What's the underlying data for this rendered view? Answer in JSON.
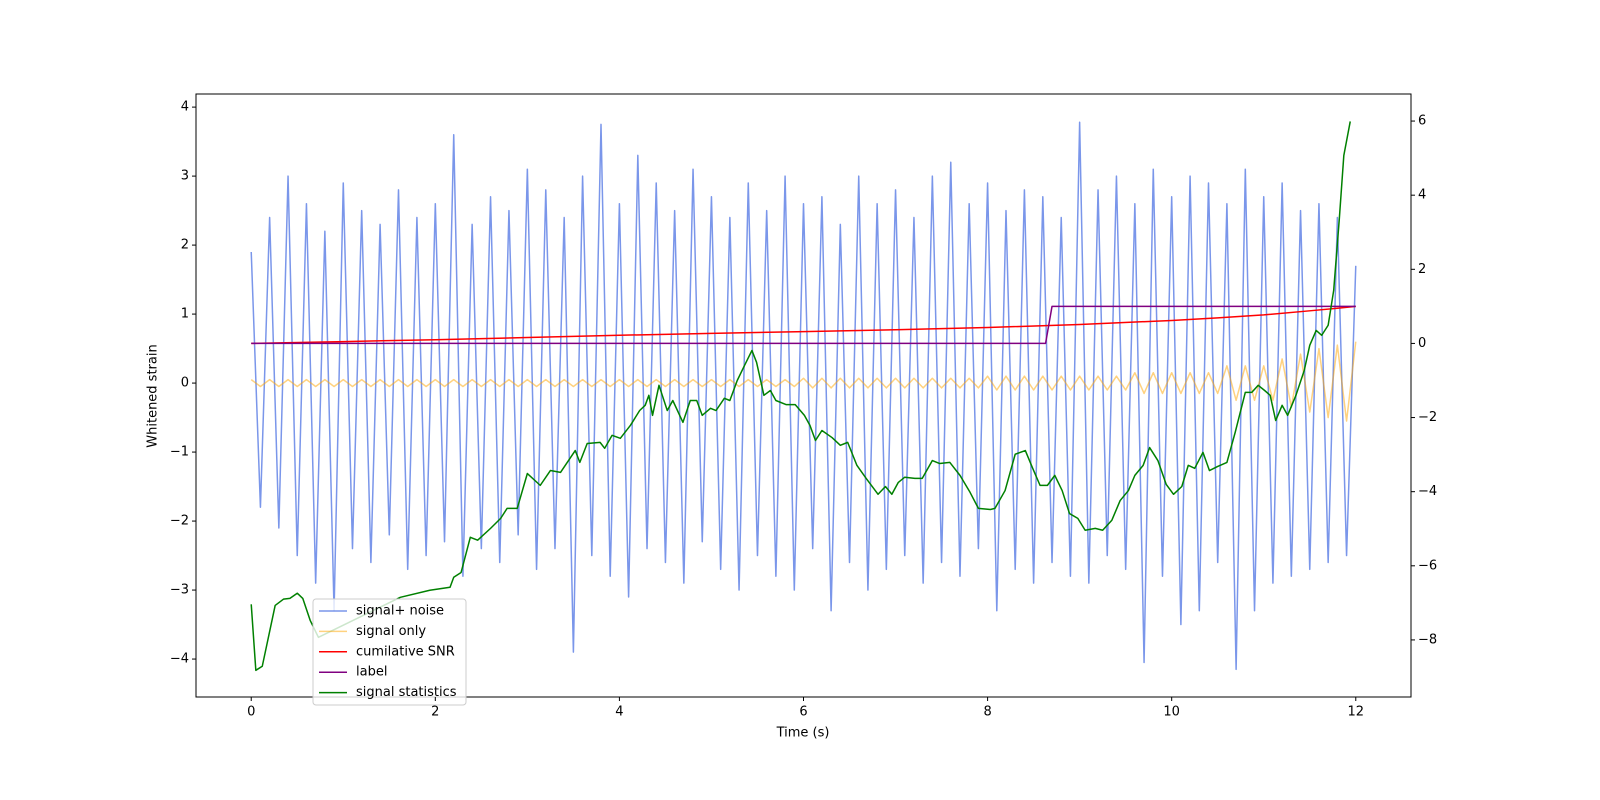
{
  "chart_data": {
    "type": "line",
    "xlabel": "Time (s)",
    "ylabel": "Whitened strain",
    "xlim": [
      -0.6,
      12.6
    ],
    "ylim": [
      -4.55,
      4.19
    ],
    "y2lim": [
      -9.54,
      6.73
    ],
    "xticks": [
      0,
      2,
      4,
      6,
      8,
      10,
      12
    ],
    "yticks": [
      {
        "value": -4,
        "label": "−4"
      },
      {
        "value": -3,
        "label": "−3"
      },
      {
        "value": -2,
        "label": "−2"
      },
      {
        "value": -1,
        "label": "−1"
      },
      0,
      1,
      2,
      3,
      4
    ],
    "y2ticks": [
      {
        "value": -8,
        "label": "−8"
      },
      {
        "value": -6,
        "label": "−6"
      },
      {
        "value": -4,
        "label": "−4"
      },
      {
        "value": -2,
        "label": "−2"
      },
      0,
      2,
      4,
      6
    ],
    "legend": "lower left",
    "x": [
      0,
      0.1,
      0.2,
      0.3,
      0.4,
      0.5,
      0.6,
      0.7,
      0.8,
      0.9,
      1,
      1.1,
      1.2,
      1.3,
      1.4,
      1.5,
      1.6,
      1.7,
      1.8,
      1.9,
      2,
      2.1,
      2.2,
      2.3,
      2.4,
      2.5,
      2.6,
      2.7,
      2.8,
      2.9,
      3,
      3.1,
      3.2,
      3.3,
      3.4,
      3.5,
      3.6,
      3.7,
      3.8,
      3.9,
      4,
      4.1,
      4.2,
      4.3,
      4.4,
      4.5,
      4.6,
      4.7,
      4.8,
      4.9,
      5,
      5.1,
      5.2,
      5.3,
      5.4,
      5.5,
      5.6,
      5.7,
      5.8,
      5.9,
      6,
      6.1,
      6.2,
      6.3,
      6.4,
      6.5,
      6.6,
      6.7,
      6.8,
      6.9,
      7,
      7.1,
      7.2,
      7.3,
      7.4,
      7.5,
      7.6,
      7.7,
      7.8,
      7.9,
      8,
      8.1,
      8.2,
      8.3,
      8.4,
      8.5,
      8.6,
      8.7,
      8.8,
      8.9,
      9,
      9.1,
      9.2,
      9.3,
      9.4,
      9.5,
      9.6,
      9.7,
      9.8,
      9.9,
      10,
      10.1,
      10.2,
      10.3,
      10.4,
      10.5,
      10.6,
      10.7,
      10.8,
      10.9,
      11,
      11.1,
      11.2,
      11.3,
      11.4,
      11.5,
      11.6,
      11.7,
      11.8,
      11.9,
      12
    ],
    "series": [
      {
        "name": "signal+ noise",
        "color": "royalblue",
        "alpha": 0.7,
        "values": [
          1.9,
          -1.8,
          2.4,
          -2.1,
          3.0,
          -2.5,
          2.6,
          -2.9,
          2.2,
          -3.3,
          2.9,
          -2.4,
          2.5,
          -2.6,
          2.3,
          -2.2,
          2.8,
          -2.7,
          2.4,
          -2.5,
          2.6,
          -2.3,
          3.6,
          -2.8,
          2.3,
          -2.4,
          2.7,
          -2.6,
          2.5,
          -2.2,
          3.1,
          -2.7,
          2.8,
          -2.4,
          2.4,
          -3.9,
          3.0,
          -2.5,
          3.75,
          -2.8,
          2.6,
          -3.1,
          3.3,
          -2.4,
          2.9,
          -2.6,
          2.5,
          -2.9,
          3.1,
          -2.3,
          2.7,
          -2.7,
          2.4,
          -3.0,
          2.9,
          -2.5,
          2.5,
          -2.8,
          3.0,
          -3.0,
          2.6,
          -2.4,
          2.7,
          -3.3,
          2.3,
          -2.6,
          3.0,
          -3.0,
          2.6,
          -2.7,
          2.8,
          -2.5,
          2.4,
          -2.9,
          3.0,
          -2.6,
          3.2,
          -2.8,
          2.6,
          -2.4,
          2.9,
          -3.3,
          2.5,
          -2.7,
          2.8,
          -2.9,
          2.7,
          -2.6,
          2.4,
          -2.8,
          3.78,
          -2.9,
          2.8,
          -2.5,
          3.0,
          -2.7,
          2.6,
          -4.05,
          3.1,
          -2.8,
          2.7,
          -3.5,
          3.0,
          -3.3,
          2.9,
          -2.6,
          2.6,
          -4.15,
          3.1,
          -3.3,
          2.7,
          -2.9,
          2.9,
          -2.8,
          2.5,
          -2.7,
          2.6,
          -2.6,
          2.4,
          -2.5,
          1.7
        ]
      },
      {
        "name": "signal only",
        "color": "orange",
        "alpha": 0.5,
        "values": [
          0.05,
          -0.05,
          0.05,
          -0.05,
          0.05,
          -0.05,
          0.05,
          -0.05,
          0.05,
          -0.05,
          0.05,
          -0.05,
          0.05,
          -0.05,
          0.05,
          -0.05,
          0.05,
          -0.05,
          0.05,
          -0.05,
          0.05,
          -0.05,
          0.05,
          -0.05,
          0.05,
          -0.05,
          0.05,
          -0.05,
          0.05,
          -0.05,
          0.05,
          -0.05,
          0.05,
          -0.05,
          0.05,
          -0.05,
          0.05,
          -0.05,
          0.05,
          -0.05,
          0.05,
          -0.05,
          0.05,
          -0.05,
          0.05,
          -0.05,
          0.05,
          -0.05,
          0.05,
          -0.05,
          0.05,
          -0.05,
          0.05,
          -0.05,
          0.05,
          -0.05,
          0.05,
          -0.05,
          0.05,
          -0.05,
          0.07,
          -0.07,
          0.07,
          -0.07,
          0.07,
          -0.07,
          0.07,
          -0.07,
          0.07,
          -0.07,
          0.07,
          -0.07,
          0.07,
          -0.07,
          0.07,
          -0.07,
          0.07,
          -0.07,
          0.07,
          -0.07,
          0.1,
          -0.1,
          0.1,
          -0.1,
          0.1,
          -0.1,
          0.1,
          -0.1,
          0.1,
          -0.1,
          0.1,
          -0.1,
          0.1,
          -0.1,
          0.1,
          -0.1,
          0.15,
          -0.15,
          0.15,
          -0.15,
          0.15,
          -0.15,
          0.15,
          -0.15,
          0.15,
          -0.15,
          0.25,
          -0.25,
          0.25,
          -0.25,
          0.25,
          -0.25,
          0.35,
          -0.35,
          0.42,
          -0.42,
          0.5,
          -0.5,
          0.55,
          -0.55,
          0.6
        ]
      },
      {
        "name": "cumilative SNR",
        "color": "red",
        "axis": "y2",
        "x": [
          0,
          1,
          2,
          3,
          4,
          5,
          6,
          7,
          8,
          9,
          10,
          10.5,
          11,
          11.5,
          11.8,
          12
        ],
        "values": [
          0,
          0.05,
          0.1,
          0.16,
          0.22,
          0.27,
          0.32,
          0.37,
          0.43,
          0.51,
          0.62,
          0.69,
          0.77,
          0.88,
          0.95,
          1.0
        ]
      },
      {
        "name": "label",
        "color": "purple",
        "axis": "y2",
        "x": [
          0,
          8.63,
          8.7,
          12
        ],
        "values": [
          0,
          0,
          1,
          1
        ]
      },
      {
        "name": "signal statistics",
        "color": "green",
        "axis": "y2",
        "x": [
          0,
          0.05,
          0.12,
          0.26,
          0.35,
          0.42,
          0.5,
          0.56,
          0.64,
          0.73,
          1.62,
          1.94,
          2.16,
          2.2,
          2.28,
          2.38,
          2.46,
          2.6,
          2.71,
          2.78,
          2.89,
          3.0,
          3.14,
          3.25,
          3.36,
          3.52,
          3.57,
          3.65,
          3.79,
          3.84,
          3.92,
          4.01,
          4.12,
          4.22,
          4.28,
          4.32,
          4.36,
          4.43,
          4.52,
          4.58,
          4.69,
          4.77,
          4.84,
          4.9,
          4.99,
          5.05,
          5.14,
          5.2,
          5.28,
          5.36,
          5.44,
          5.49,
          5.57,
          5.64,
          5.7,
          5.81,
          5.91,
          6.01,
          6.07,
          6.13,
          6.2,
          6.31,
          6.4,
          6.48,
          6.58,
          6.68,
          6.81,
          6.89,
          6.96,
          7.03,
          7.1,
          7.21,
          7.29,
          7.4,
          7.48,
          7.59,
          7.7,
          7.81,
          7.9,
          8.03,
          8.08,
          8.19,
          8.3,
          8.41,
          8.49,
          8.57,
          8.65,
          8.73,
          8.81,
          8.89,
          8.98,
          9.06,
          9.17,
          9.25,
          9.35,
          9.44,
          9.53,
          9.6,
          9.69,
          9.76,
          9.85,
          9.94,
          10.02,
          10.11,
          10.18,
          10.25,
          10.34,
          10.41,
          10.5,
          10.6,
          10.69,
          10.8,
          10.87,
          10.94,
          11.01,
          11.07,
          11.13,
          11.2,
          11.26,
          11.35,
          11.44,
          11.5,
          11.57,
          11.63,
          11.7,
          11.76,
          11.82,
          11.87,
          11.94
        ],
        "values": [
          -7.04,
          -8.82,
          -8.71,
          -7.07,
          -6.9,
          -6.88,
          -6.74,
          -6.88,
          -7.47,
          -7.93,
          -6.85,
          -6.66,
          -6.58,
          -6.31,
          -6.18,
          -5.23,
          -5.31,
          -4.99,
          -4.72,
          -4.45,
          -4.45,
          -3.51,
          -3.83,
          -3.43,
          -3.48,
          -2.89,
          -3.21,
          -2.7,
          -2.67,
          -2.83,
          -2.48,
          -2.56,
          -2.21,
          -1.81,
          -1.67,
          -1.4,
          -1.94,
          -1.13,
          -1.81,
          -1.54,
          -2.13,
          -1.54,
          -1.54,
          -1.94,
          -1.75,
          -1.81,
          -1.48,
          -1.54,
          -1.0,
          -0.59,
          -0.19,
          -0.51,
          -1.4,
          -1.27,
          -1.54,
          -1.65,
          -1.65,
          -1.94,
          -2.21,
          -2.62,
          -2.35,
          -2.54,
          -2.75,
          -2.67,
          -3.29,
          -3.64,
          -4.07,
          -3.86,
          -4.07,
          -3.75,
          -3.61,
          -3.64,
          -3.64,
          -3.16,
          -3.24,
          -3.21,
          -3.56,
          -4.02,
          -4.45,
          -4.48,
          -4.45,
          -3.97,
          -2.99,
          -2.89,
          -3.37,
          -3.83,
          -3.83,
          -3.56,
          -3.97,
          -4.59,
          -4.72,
          -5.04,
          -4.99,
          -5.04,
          -4.77,
          -4.24,
          -3.97,
          -3.56,
          -3.29,
          -2.81,
          -3.16,
          -3.8,
          -4.07,
          -3.86,
          -3.29,
          -3.37,
          -2.94,
          -3.43,
          -3.32,
          -3.21,
          -2.4,
          -1.32,
          -1.32,
          -1.13,
          -1.27,
          -1.4,
          -2.08,
          -1.67,
          -1.94,
          -1.4,
          -0.73,
          -0.05,
          0.35,
          0.22,
          0.49,
          1.43,
          3.32,
          5.07,
          5.99
        ]
      }
    ]
  }
}
